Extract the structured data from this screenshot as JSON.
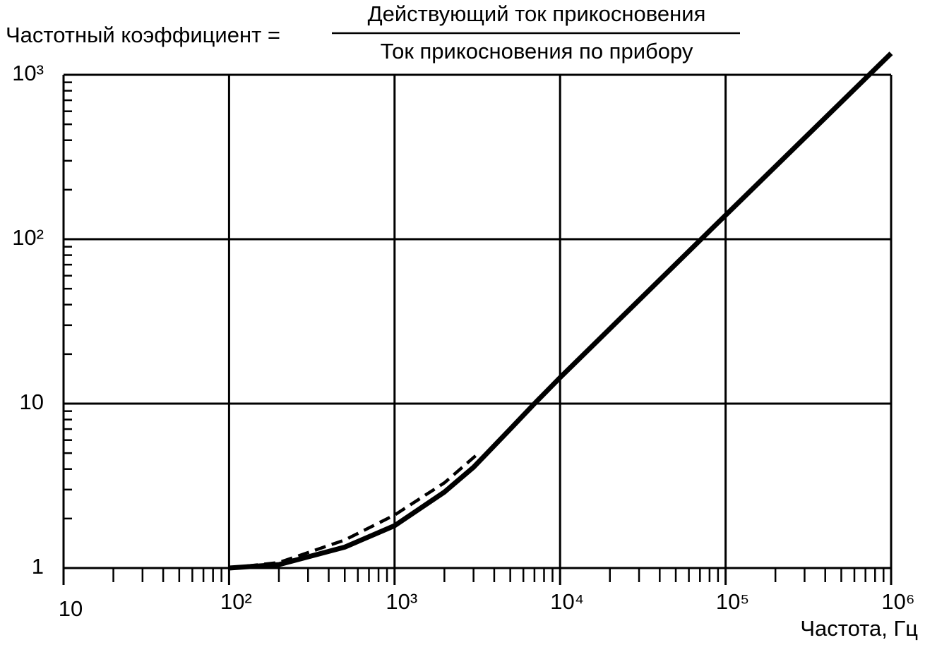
{
  "chart_data": {
    "type": "line",
    "title": "Частотный коэффициент =",
    "title_numerator": "Действующий ток прикосновения",
    "title_denominator": "Ток прикосновения по прибору",
    "x_label": "Частота, Гц",
    "log_x": true,
    "log_y": true,
    "grid": true,
    "xlim": [
      10,
      1000000
    ],
    "ylim": [
      1,
      1000
    ],
    "xticks": [
      10,
      {
        "value": 100,
        "label": "10²"
      },
      {
        "value": 1000,
        "label": "10³"
      },
      {
        "value": 10000,
        "label": "10⁴"
      },
      {
        "value": 100000,
        "label": "10⁵"
      },
      {
        "value": 1000000,
        "label": "10⁶"
      }
    ],
    "yticks": [
      1,
      10,
      {
        "value": 100,
        "label": "10²"
      },
      {
        "value": 1000,
        "label": "10³"
      }
    ],
    "xminorticks": [
      20,
      30,
      40,
      50,
      60,
      70,
      80,
      90,
      200,
      300,
      400,
      500,
      600,
      700,
      800,
      900,
      2000,
      3000,
      4000,
      5000,
      6000,
      7000,
      8000,
      9000,
      20000,
      30000,
      40000,
      50000,
      60000,
      70000,
      80000,
      90000,
      200000,
      300000,
      400000,
      500000,
      600000,
      700000,
      800000,
      900000
    ],
    "yminorticks": [
      2,
      3,
      4,
      5,
      6,
      7,
      8,
      9,
      20,
      30,
      40,
      50,
      60,
      70,
      80,
      90,
      200,
      300,
      400,
      500,
      600,
      700,
      800,
      900
    ],
    "series": [
      {
        "color": "#000000",
        "style": "solid",
        "x": [
          100,
          200,
          500,
          1000,
          2000,
          3000,
          5000,
          7000,
          10000,
          100000,
          1000000
        ],
        "values": [
          1,
          1.05,
          1.34,
          1.81,
          2.9,
          4.1,
          7,
          10,
          14.4,
          140,
          1350
        ]
      },
      {
        "color": "#000000",
        "style": "dashed",
        "x": [
          100,
          200,
          500,
          1000,
          2000,
          3300
        ],
        "values": [
          1,
          1.08,
          1.48,
          2.1,
          3.3,
          5.1
        ]
      }
    ]
  }
}
